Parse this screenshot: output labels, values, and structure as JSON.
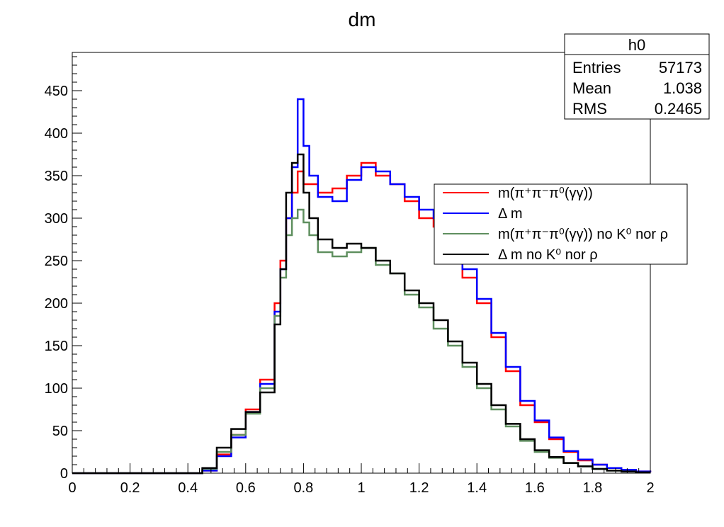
{
  "chart_data": {
    "type": "histogram",
    "title": "dm",
    "xlim": [
      0,
      2
    ],
    "ylim": [
      0,
      495
    ],
    "x_ticks": [
      0,
      0.2,
      0.4,
      0.6,
      0.8,
      1,
      1.2,
      1.4,
      1.6,
      1.8,
      2
    ],
    "x_tick_labels": [
      "0",
      "0.2",
      "0.4",
      "0.6",
      "0.8",
      "1",
      "1.2",
      "1.4",
      "1.6",
      "1.8",
      "2"
    ],
    "y_ticks": [
      0,
      50,
      100,
      150,
      200,
      250,
      300,
      350,
      400,
      450
    ],
    "y_tick_labels": [
      "0",
      "50",
      "100",
      "150",
      "200",
      "250",
      "300",
      "350",
      "400",
      "450"
    ],
    "grid": false,
    "legend_position": "right",
    "stats_box": {
      "name": "h0",
      "rows": [
        {
          "label": "Entries",
          "value": "57173"
        },
        {
          "label": "Mean",
          "value": "1.038"
        },
        {
          "label": "RMS",
          "value": "0.2465"
        }
      ]
    },
    "series": [
      {
        "name": "m(π⁺π⁻π⁰(γγ))",
        "color": "#ff0000",
        "x": [
          0.4,
          0.45,
          0.5,
          0.55,
          0.6,
          0.65,
          0.7,
          0.72,
          0.74,
          0.76,
          0.78,
          0.8,
          0.82,
          0.85,
          0.9,
          0.95,
          1.0,
          1.05,
          1.1,
          1.15,
          1.2,
          1.25,
          1.3,
          1.35,
          1.4,
          1.45,
          1.5,
          1.55,
          1.6,
          1.65,
          1.7,
          1.75,
          1.8,
          1.85,
          1.9,
          1.95,
          2.0
        ],
        "values": [
          0,
          3,
          22,
          45,
          75,
          110,
          200,
          250,
          300,
          330,
          355,
          340,
          340,
          330,
          335,
          350,
          365,
          350,
          340,
          320,
          300,
          290,
          270,
          230,
          200,
          160,
          120,
          80,
          60,
          40,
          25,
          15,
          10,
          6,
          4,
          2,
          1
        ]
      },
      {
        "name": "Δ m",
        "color": "#0000ff",
        "x": [
          0.4,
          0.45,
          0.5,
          0.55,
          0.6,
          0.65,
          0.7,
          0.72,
          0.74,
          0.76,
          0.78,
          0.8,
          0.82,
          0.85,
          0.9,
          0.95,
          1.0,
          1.05,
          1.1,
          1.15,
          1.2,
          1.25,
          1.3,
          1.35,
          1.4,
          1.45,
          1.5,
          1.55,
          1.6,
          1.65,
          1.7,
          1.75,
          1.8,
          1.85,
          1.9,
          1.95,
          2.0
        ],
        "values": [
          0,
          3,
          20,
          42,
          72,
          105,
          190,
          240,
          300,
          360,
          440,
          385,
          350,
          325,
          320,
          345,
          360,
          355,
          340,
          325,
          310,
          300,
          280,
          240,
          205,
          165,
          125,
          85,
          62,
          42,
          26,
          16,
          10,
          6,
          4,
          2,
          1
        ]
      },
      {
        "name": "m(π⁺π⁻π⁰(γγ)) no K⁰ nor ρ",
        "color": "#5f8f5f",
        "x": [
          0.4,
          0.45,
          0.5,
          0.55,
          0.6,
          0.65,
          0.7,
          0.72,
          0.74,
          0.76,
          0.78,
          0.8,
          0.82,
          0.85,
          0.9,
          0.95,
          1.0,
          1.05,
          1.1,
          1.15,
          1.2,
          1.25,
          1.3,
          1.35,
          1.4,
          1.45,
          1.5,
          1.55,
          1.6,
          1.65,
          1.7,
          1.75,
          1.8,
          1.85,
          1.9,
          1.95,
          2.0
        ],
        "values": [
          0,
          5,
          25,
          45,
          70,
          100,
          185,
          230,
          280,
          300,
          310,
          295,
          280,
          260,
          255,
          260,
          265,
          245,
          235,
          210,
          195,
          170,
          150,
          125,
          100,
          75,
          55,
          38,
          25,
          18,
          12,
          8,
          5,
          3,
          2,
          1,
          1
        ]
      },
      {
        "name": "Δ m no K⁰ nor ρ",
        "color": "#000000",
        "x": [
          0.4,
          0.45,
          0.5,
          0.55,
          0.6,
          0.65,
          0.7,
          0.72,
          0.74,
          0.76,
          0.78,
          0.8,
          0.82,
          0.85,
          0.9,
          0.95,
          1.0,
          1.05,
          1.1,
          1.15,
          1.2,
          1.25,
          1.3,
          1.35,
          1.4,
          1.45,
          1.5,
          1.55,
          1.6,
          1.65,
          1.7,
          1.75,
          1.8,
          1.85,
          1.9,
          1.95,
          2.0
        ],
        "values": [
          0,
          6,
          30,
          52,
          72,
          95,
          175,
          240,
          330,
          365,
          375,
          330,
          300,
          275,
          265,
          270,
          265,
          250,
          235,
          215,
          200,
          180,
          155,
          130,
          105,
          80,
          58,
          40,
          27,
          19,
          12,
          8,
          5,
          3,
          2,
          1,
          1
        ]
      }
    ]
  }
}
